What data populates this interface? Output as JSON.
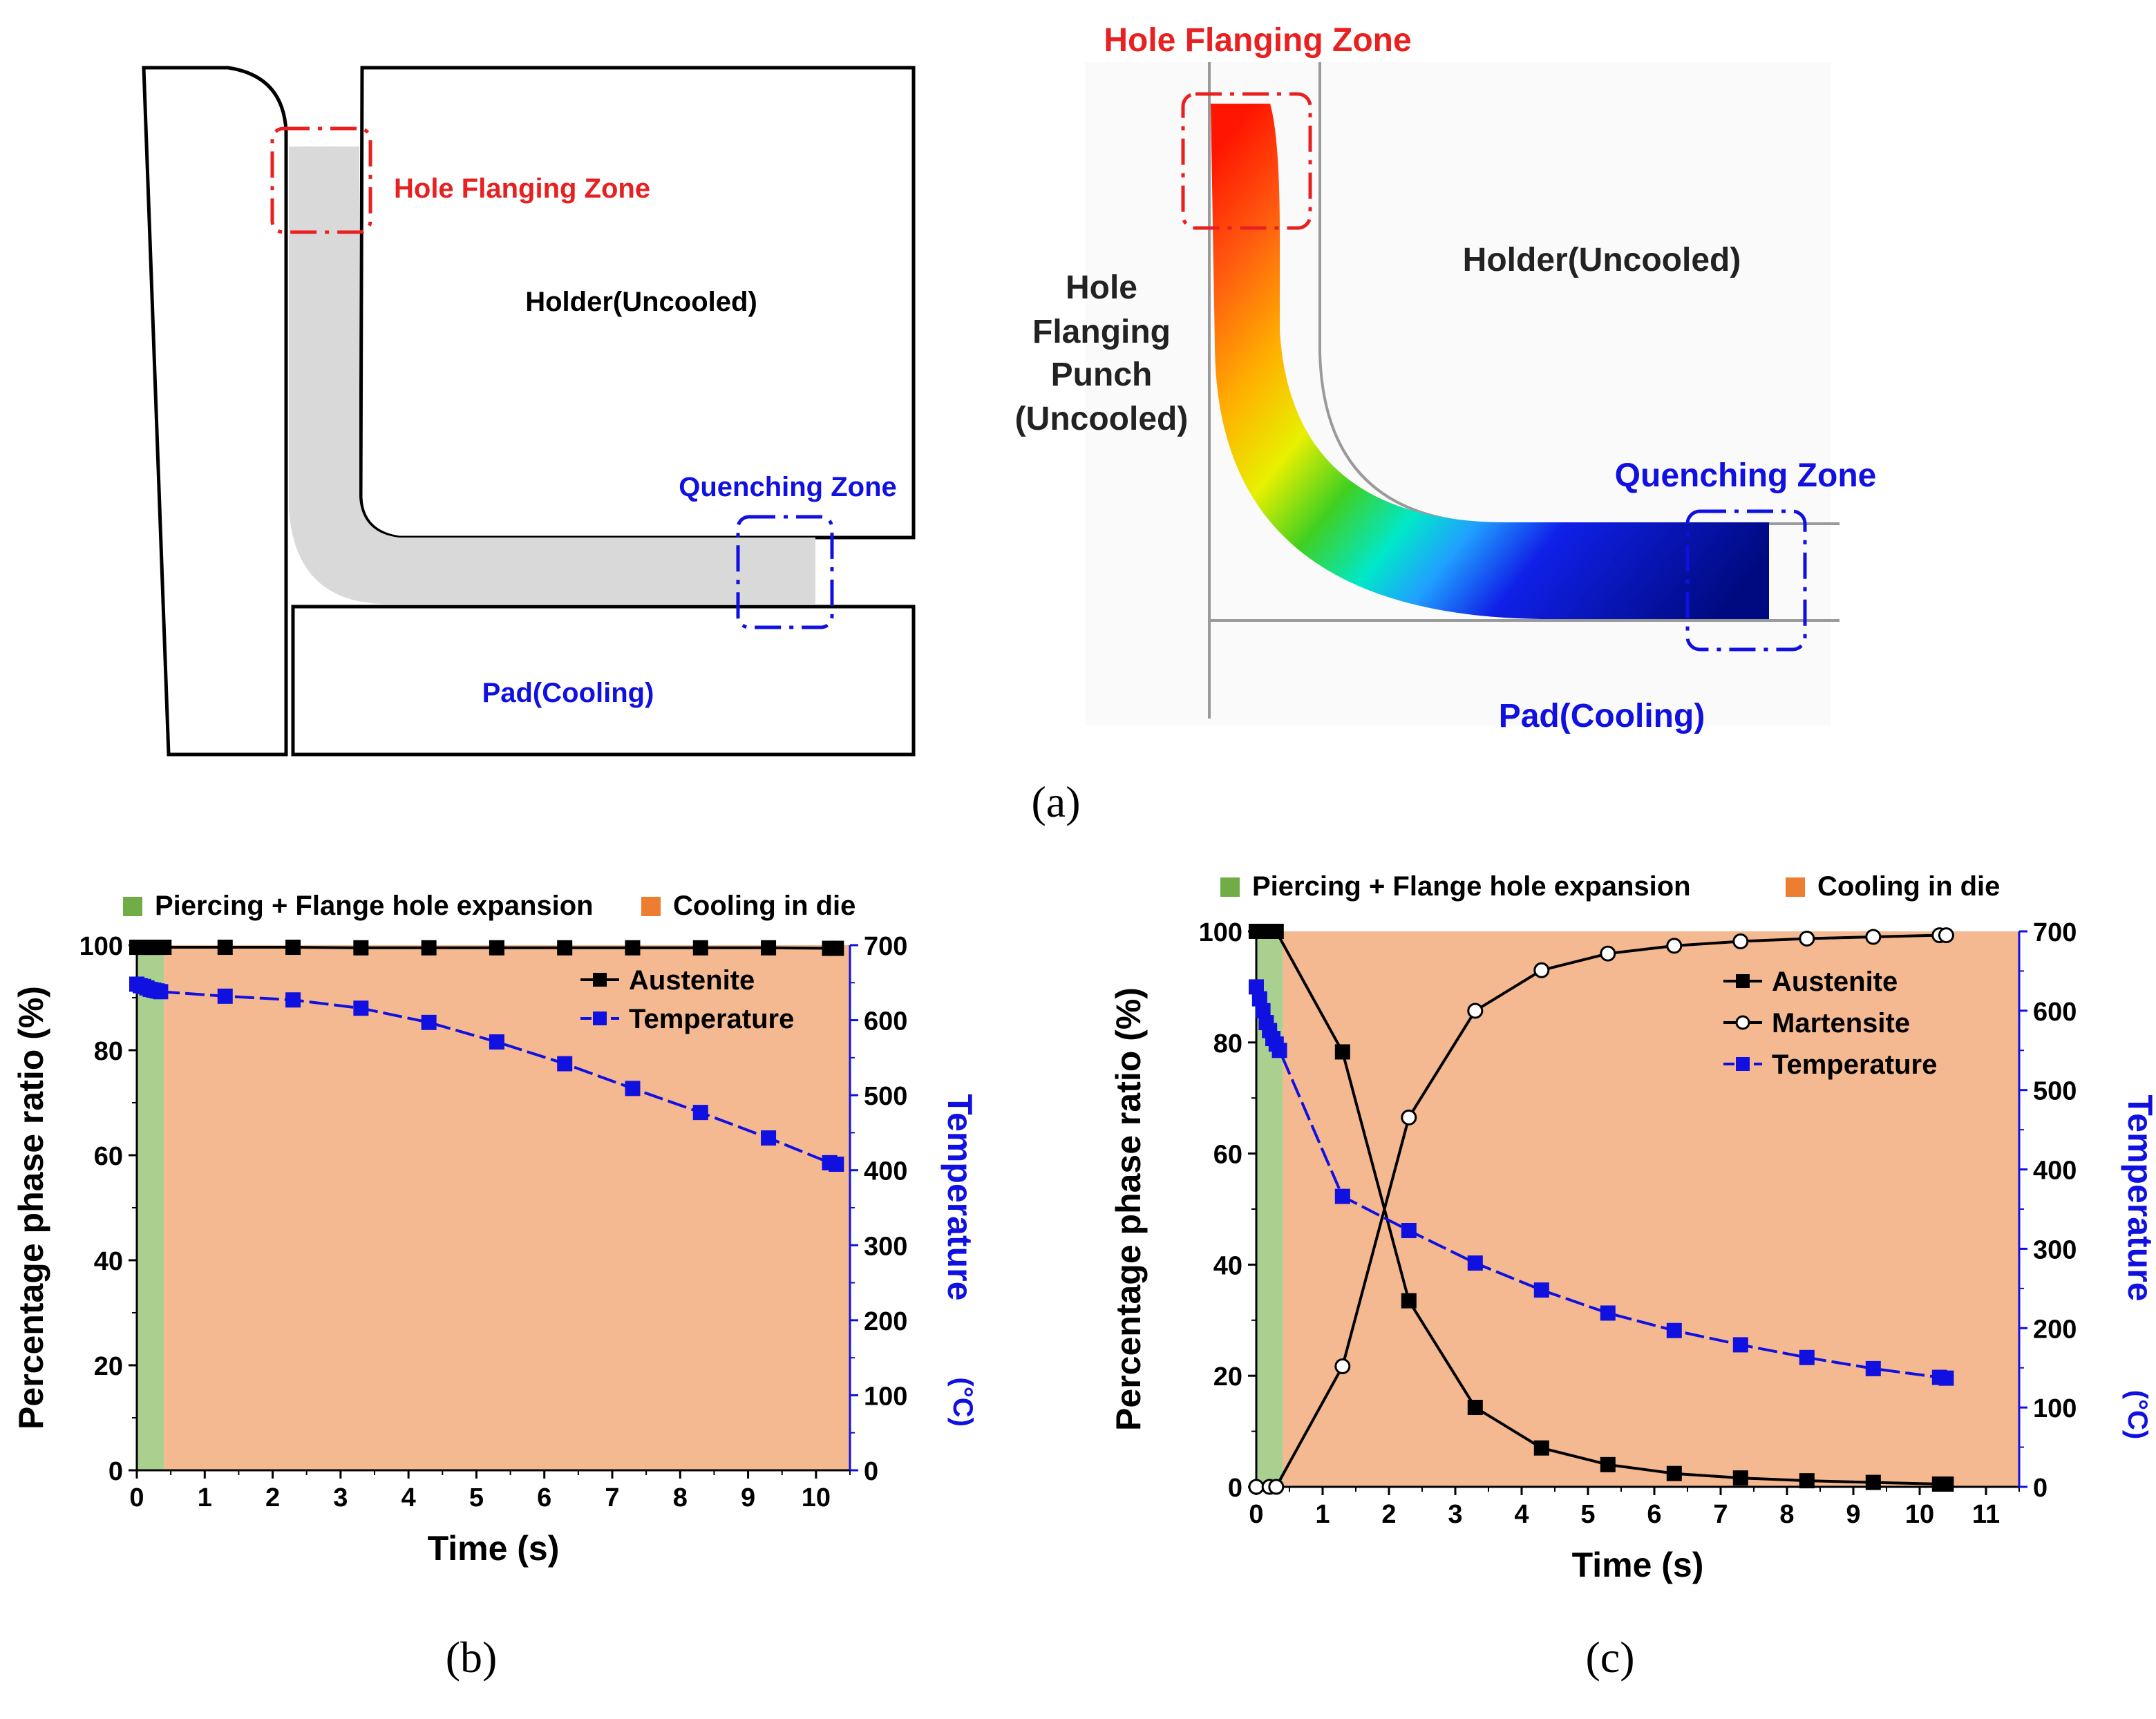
{
  "colors": {
    "red": "#e8201f",
    "blue": "#1010e0",
    "black": "#000000",
    "green_band": "#a9d08e",
    "orange_bg": "#f4b990",
    "legend_green": "#70ad47",
    "legend_orange": "#ed7d31",
    "sheet_gray": "#d9d9d9"
  },
  "panel_a": {
    "label": "(a)",
    "schematic": {
      "hole_flanging_zone": "Hole Flanging Zone",
      "holder": "Holder(Uncooled)",
      "quenching_zone": "Quenching Zone",
      "pad": "Pad(Cooling)"
    },
    "simulation": {
      "hole_flanging_zone": "Hole Flanging Zone",
      "holder": "Holder(Uncooled)",
      "punch_lines": [
        "Hole",
        "Flanging",
        "Punch",
        "(Uncooled)"
      ],
      "quenching_zone": "Quenching Zone",
      "pad": "Pad(Cooling)"
    }
  },
  "chart_data": [
    {
      "panel": "(b)",
      "type": "line",
      "xlabel": "Time (s)",
      "ylabel": "Percentage phase ratio (%)",
      "y2label": "Temperature",
      "y2unit": "(°C)",
      "xlim": [
        0,
        10.5
      ],
      "ylim": [
        0,
        100
      ],
      "y2lim": [
        0,
        700
      ],
      "xticks": [
        "0",
        "1",
        "2",
        "3",
        "4",
        "5",
        "6",
        "7",
        "8",
        "9",
        "10"
      ],
      "yticks": [
        "0",
        "20",
        "40",
        "60",
        "80",
        "100"
      ],
      "y2ticks": [
        "0",
        "100",
        "200",
        "300",
        "400",
        "500",
        "600",
        "700"
      ],
      "phases": [
        {
          "label": "Piercing + Flange hole expansion",
          "start": 0,
          "end": 0.4,
          "color": "#a9d08e"
        },
        {
          "label": "Cooling in die",
          "start": 0.4,
          "end": 10.5,
          "color": "#f4b990"
        }
      ],
      "series": [
        {
          "name": "Austenite",
          "axis": "left",
          "marker": "square",
          "color": "#000000",
          "x": [
            0,
            0.05,
            0.1,
            0.15,
            0.2,
            0.25,
            0.3,
            0.35,
            0.4,
            1.3,
            2.3,
            3.3,
            4.3,
            5.3,
            6.3,
            7.3,
            8.3,
            9.3,
            10.2,
            10.3
          ],
          "values": [
            99.6,
            99.6,
            99.6,
            99.6,
            99.6,
            99.6,
            99.6,
            99.6,
            99.6,
            99.6,
            99.6,
            99.5,
            99.5,
            99.5,
            99.5,
            99.5,
            99.5,
            99.5,
            99.4,
            99.4
          ]
        },
        {
          "name": "Temperature",
          "axis": "right",
          "marker": "square",
          "color": "#1010e0",
          "x": [
            0,
            0.05,
            0.1,
            0.15,
            0.2,
            0.25,
            0.3,
            0.35,
            1.3,
            2.3,
            3.3,
            4.3,
            5.3,
            6.3,
            7.3,
            8.3,
            9.3,
            10.2,
            10.3
          ],
          "values": [
            648,
            646,
            645,
            643,
            641,
            640,
            639,
            638,
            632,
            627,
            616,
            597,
            571,
            542,
            509,
            477,
            443,
            410,
            408
          ]
        }
      ]
    },
    {
      "panel": "(c)",
      "type": "line",
      "xlabel": "Time (s)",
      "ylabel": "Percentage phase ratio (%)",
      "y2label": "Temperature",
      "y2unit": "(°C)",
      "xlim": [
        0,
        11.5
      ],
      "ylim": [
        0,
        100
      ],
      "y2lim": [
        0,
        700
      ],
      "xticks": [
        "0",
        "1",
        "2",
        "3",
        "4",
        "5",
        "6",
        "7",
        "8",
        "9",
        "10",
        "11"
      ],
      "yticks": [
        "0",
        "20",
        "40",
        "60",
        "80",
        "100"
      ],
      "y2ticks": [
        "0",
        "100",
        "200",
        "300",
        "400",
        "500",
        "600",
        "700"
      ],
      "phases": [
        {
          "label": "Piercing + Flange hole expansion",
          "start": 0,
          "end": 0.4,
          "color": "#a9d08e"
        },
        {
          "label": "Cooling in die",
          "start": 0.4,
          "end": 11.5,
          "color": "#f4b990"
        }
      ],
      "series": [
        {
          "name": "Austenite",
          "axis": "left",
          "marker": "square",
          "color": "#000000",
          "x": [
            0,
            0.1,
            0.2,
            0.3,
            1.3,
            2.3,
            3.3,
            4.3,
            5.3,
            6.3,
            7.3,
            8.3,
            9.3,
            10.3,
            10.4
          ],
          "values": [
            100,
            100,
            100,
            100,
            78.3,
            33.5,
            14.3,
            7,
            4,
            2.4,
            1.6,
            1.1,
            0.8,
            0.5,
            0.5
          ]
        },
        {
          "name": "Martensite",
          "axis": "left",
          "marker": "circle",
          "color": "#000000",
          "x": [
            0,
            0.2,
            0.3,
            1.3,
            2.3,
            3.3,
            4.3,
            5.3,
            6.3,
            7.3,
            8.3,
            9.3,
            10.3,
            10.4
          ],
          "values": [
            0,
            0,
            0,
            21.7,
            66.5,
            85.7,
            93,
            96,
            97.4,
            98.2,
            98.7,
            99,
            99.3,
            99.3
          ]
        },
        {
          "name": "Temperature",
          "axis": "right",
          "marker": "square",
          "color": "#1010e0",
          "x": [
            0,
            0.05,
            0.1,
            0.15,
            0.2,
            0.25,
            0.3,
            0.35,
            1.3,
            2.3,
            3.3,
            4.3,
            5.3,
            6.3,
            7.3,
            8.3,
            9.3,
            10.3,
            10.4
          ],
          "values": [
            630,
            615,
            600,
            585,
            575,
            565,
            558,
            550,
            366,
            323,
            282,
            248,
            219,
            197,
            179,
            163,
            149,
            138,
            137
          ]
        }
      ]
    }
  ]
}
